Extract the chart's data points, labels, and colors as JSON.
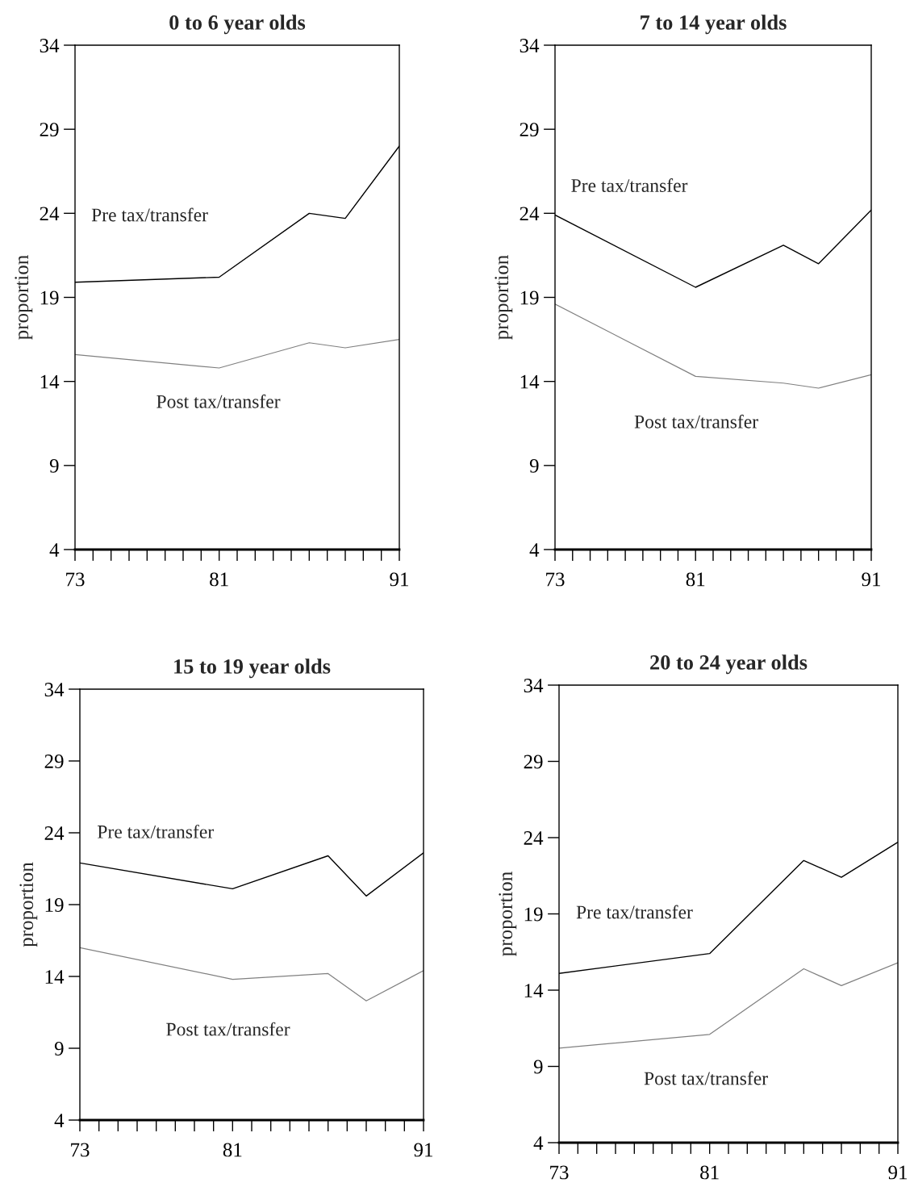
{
  "chart_data": [
    {
      "type": "line",
      "title": "0 to 6 year olds",
      "ylabel": "proportion",
      "x": [
        73,
        81,
        86,
        88,
        91
      ],
      "series": [
        {
          "name": "Pre tax/transfer",
          "color": "#000000",
          "values": [
            19.9,
            20.2,
            24.0,
            23.7,
            28.0
          ]
        },
        {
          "name": "Post tax/transfer",
          "color": "#808080",
          "values": [
            15.6,
            14.8,
            16.3,
            16.0,
            16.5
          ]
        }
      ],
      "xlim": [
        73,
        91
      ],
      "xticks": [
        73,
        {
          "value": 74,
          "label": null
        },
        {
          "value": 75,
          "label": null
        },
        {
          "value": 76,
          "label": null
        },
        {
          "value": 77,
          "label": null
        },
        {
          "value": 78,
          "label": null
        },
        {
          "value": 79,
          "label": null
        },
        {
          "value": 80,
          "label": null
        },
        81,
        {
          "value": 82,
          "label": null
        },
        {
          "value": 83,
          "label": null
        },
        {
          "value": 84,
          "label": null
        },
        {
          "value": 85,
          "label": null
        },
        {
          "value": 86,
          "label": null
        },
        {
          "value": 87,
          "label": null
        },
        {
          "value": 88,
          "label": null
        },
        {
          "value": 89,
          "label": null
        },
        {
          "value": 90,
          "label": null
        },
        91
      ],
      "ylim": [
        4,
        34
      ],
      "yticks": [
        4,
        9,
        14,
        19,
        24,
        29,
        34
      ],
      "grid": false,
      "legend": false
    },
    {
      "type": "line",
      "title": "7 to 14 year olds",
      "ylabel": "proportion",
      "x": [
        73,
        81,
        86,
        88,
        91
      ],
      "series": [
        {
          "name": "Pre tax/transfer",
          "color": "#000000",
          "values": [
            23.9,
            19.6,
            22.1,
            21.0,
            24.2
          ]
        },
        {
          "name": "Post tax/transfer",
          "color": "#808080",
          "values": [
            18.6,
            14.3,
            13.9,
            13.6,
            14.4
          ]
        }
      ],
      "xlim": [
        73,
        91
      ],
      "xticks": [
        73,
        {
          "value": 74,
          "label": null
        },
        {
          "value": 75,
          "label": null
        },
        {
          "value": 76,
          "label": null
        },
        {
          "value": 77,
          "label": null
        },
        {
          "value": 78,
          "label": null
        },
        {
          "value": 79,
          "label": null
        },
        {
          "value": 80,
          "label": null
        },
        81,
        {
          "value": 82,
          "label": null
        },
        {
          "value": 83,
          "label": null
        },
        {
          "value": 84,
          "label": null
        },
        {
          "value": 85,
          "label": null
        },
        {
          "value": 86,
          "label": null
        },
        {
          "value": 87,
          "label": null
        },
        {
          "value": 88,
          "label": null
        },
        {
          "value": 89,
          "label": null
        },
        {
          "value": 90,
          "label": null
        },
        91
      ],
      "ylim": [
        4,
        34
      ],
      "yticks": [
        4,
        9,
        14,
        19,
        24,
        29,
        34
      ],
      "grid": false,
      "legend": false
    },
    {
      "type": "line",
      "title": "15 to 19 year olds",
      "ylabel": "proportion",
      "x": [
        73,
        81,
        86,
        88,
        91
      ],
      "series": [
        {
          "name": "Pre tax/transfer",
          "color": "#000000",
          "values": [
            21.9,
            20.1,
            22.4,
            19.6,
            22.6
          ]
        },
        {
          "name": "Post tax/transfer",
          "color": "#808080",
          "values": [
            16.0,
            13.8,
            14.2,
            12.3,
            14.4
          ]
        }
      ],
      "xlim": [
        73,
        91
      ],
      "xticks": [
        73,
        {
          "value": 74,
          "label": null
        },
        {
          "value": 75,
          "label": null
        },
        {
          "value": 76,
          "label": null
        },
        {
          "value": 77,
          "label": null
        },
        {
          "value": 78,
          "label": null
        },
        {
          "value": 79,
          "label": null
        },
        {
          "value": 80,
          "label": null
        },
        81,
        {
          "value": 82,
          "label": null
        },
        {
          "value": 83,
          "label": null
        },
        {
          "value": 84,
          "label": null
        },
        {
          "value": 85,
          "label": null
        },
        {
          "value": 86,
          "label": null
        },
        {
          "value": 87,
          "label": null
        },
        {
          "value": 88,
          "label": null
        },
        {
          "value": 89,
          "label": null
        },
        {
          "value": 90,
          "label": null
        },
        91
      ],
      "ylim": [
        4,
        34
      ],
      "yticks": [
        4,
        9,
        14,
        19,
        24,
        29,
        34
      ],
      "grid": false,
      "legend": false
    },
    {
      "type": "line",
      "title": "20 to 24 year olds",
      "ylabel": "proportion",
      "x": [
        73,
        81,
        86,
        88,
        91
      ],
      "series": [
        {
          "name": "Pre tax/transfer",
          "color": "#000000",
          "values": [
            15.1,
            16.4,
            22.5,
            21.4,
            23.7
          ]
        },
        {
          "name": "Post tax/transfer",
          "color": "#808080",
          "values": [
            10.2,
            11.1,
            15.4,
            14.3,
            15.8
          ]
        }
      ],
      "xlim": [
        73,
        91
      ],
      "xticks": [
        73,
        {
          "value": 74,
          "label": null
        },
        {
          "value": 75,
          "label": null
        },
        {
          "value": 76,
          "label": null
        },
        {
          "value": 77,
          "label": null
        },
        {
          "value": 78,
          "label": null
        },
        {
          "value": 79,
          "label": null
        },
        {
          "value": 80,
          "label": null
        },
        81,
        {
          "value": 82,
          "label": null
        },
        {
          "value": 83,
          "label": null
        },
        {
          "value": 84,
          "label": null
        },
        {
          "value": 85,
          "label": null
        },
        {
          "value": 86,
          "label": null
        },
        {
          "value": 87,
          "label": null
        },
        {
          "value": 88,
          "label": null
        },
        {
          "value": 89,
          "label": null
        },
        {
          "value": 90,
          "label": null
        },
        91
      ],
      "ylim": [
        4,
        34
      ],
      "yticks": [
        4,
        9,
        14,
        19,
        24,
        29,
        34
      ],
      "grid": false,
      "legend": false
    }
  ]
}
